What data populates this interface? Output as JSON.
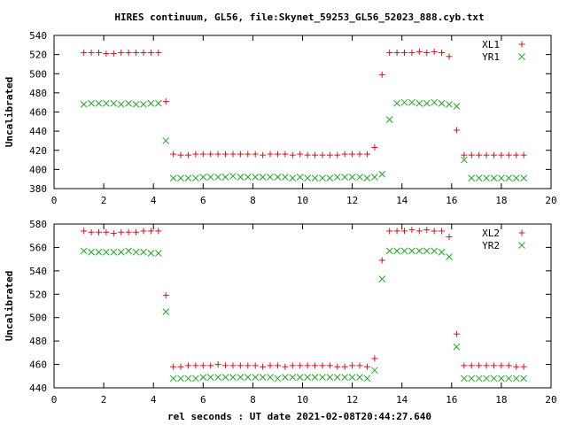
{
  "title": "HIRES continuum, GL56, file:Skynet_59253_GL56_52023_888.cyb.txt",
  "xlabel": "rel seconds : UT date 2021-02-08T20:44:27.640",
  "colors": {
    "plus": "#d4141c",
    "cross": "#22a824",
    "axis": "#000000"
  },
  "chart_data": [
    {
      "type": "scatter",
      "ylabel": "Uncalibrated",
      "xlim": [
        0,
        20
      ],
      "ylim": [
        380,
        540
      ],
      "xticks": [
        0,
        2,
        4,
        6,
        8,
        10,
        12,
        14,
        16,
        18,
        20
      ],
      "yticks": [
        380,
        400,
        420,
        440,
        460,
        480,
        500,
        520,
        540
      ],
      "legend_position": "top-right",
      "x": [
        1.2,
        1.5,
        1.8,
        2.1,
        2.4,
        2.7,
        3.0,
        3.3,
        3.6,
        3.9,
        4.2,
        4.5,
        4.8,
        5.1,
        5.4,
        5.7,
        6.0,
        6.3,
        6.6,
        6.9,
        7.2,
        7.5,
        7.8,
        8.1,
        8.4,
        8.7,
        9.0,
        9.3,
        9.6,
        9.9,
        10.2,
        10.5,
        10.8,
        11.1,
        11.4,
        11.7,
        12.0,
        12.3,
        12.6,
        12.9,
        13.2,
        13.5,
        13.8,
        14.1,
        14.4,
        14.7,
        15.0,
        15.3,
        15.6,
        15.9,
        16.2,
        16.5,
        16.8,
        17.1,
        17.4,
        17.7,
        18.0,
        18.3,
        18.6,
        18.9
      ],
      "series": [
        {
          "name": "XL1",
          "marker": "plus",
          "values": [
            522,
            522,
            522,
            521,
            521,
            522,
            522,
            522,
            522,
            522,
            522,
            471,
            416,
            415,
            415,
            416,
            416,
            416,
            416,
            416,
            416,
            416,
            416,
            416,
            415,
            416,
            416,
            416,
            415,
            416,
            415,
            415,
            415,
            415,
            415,
            416,
            416,
            416,
            416,
            423,
            499,
            522,
            522,
            522,
            522,
            523,
            522,
            523,
            522,
            518,
            441,
            415,
            415,
            415,
            415,
            415,
            415,
            415,
            415,
            415
          ]
        },
        {
          "name": "YR1",
          "marker": "cross",
          "values": [
            468,
            469,
            469,
            469,
            469,
            468,
            469,
            468,
            468,
            469,
            469,
            430,
            391,
            391,
            391,
            391,
            392,
            392,
            392,
            392,
            393,
            392,
            392,
            392,
            392,
            392,
            392,
            392,
            391,
            392,
            391,
            391,
            391,
            391,
            392,
            392,
            392,
            392,
            391,
            392,
            395,
            452,
            469,
            470,
            470,
            469,
            469,
            470,
            469,
            468,
            466,
            410,
            391,
            391,
            391,
            391,
            391,
            391,
            391,
            391
          ]
        }
      ]
    },
    {
      "type": "scatter",
      "ylabel": "Uncalibrated",
      "xlim": [
        0,
        20
      ],
      "ylim": [
        440,
        580
      ],
      "xticks": [
        0,
        2,
        4,
        6,
        8,
        10,
        12,
        14,
        16,
        18,
        20
      ],
      "yticks": [
        440,
        460,
        480,
        500,
        520,
        540,
        560,
        580
      ],
      "legend_position": "top-right",
      "x": [
        1.2,
        1.5,
        1.8,
        2.1,
        2.4,
        2.7,
        3.0,
        3.3,
        3.6,
        3.9,
        4.2,
        4.5,
        4.8,
        5.1,
        5.4,
        5.7,
        6.0,
        6.3,
        6.6,
        6.9,
        7.2,
        7.5,
        7.8,
        8.1,
        8.4,
        8.7,
        9.0,
        9.3,
        9.6,
        9.9,
        10.2,
        10.5,
        10.8,
        11.1,
        11.4,
        11.7,
        12.0,
        12.3,
        12.6,
        12.9,
        13.2,
        13.5,
        13.8,
        14.1,
        14.4,
        14.7,
        15.0,
        15.3,
        15.6,
        15.9,
        16.2,
        16.5,
        16.8,
        17.1,
        17.4,
        17.7,
        18.0,
        18.3,
        18.6,
        18.9
      ],
      "series": [
        {
          "name": "XL2",
          "marker": "plus",
          "values": [
            574,
            573,
            573,
            573,
            572,
            573,
            573,
            573,
            574,
            574,
            574,
            519,
            458,
            458,
            459,
            459,
            459,
            459,
            460,
            459,
            459,
            459,
            459,
            459,
            458,
            459,
            459,
            458,
            459,
            459,
            459,
            459,
            459,
            459,
            458,
            458,
            459,
            459,
            458,
            465,
            549,
            574,
            574,
            574,
            575,
            574,
            575,
            574,
            574,
            569,
            486,
            459,
            459,
            459,
            459,
            459,
            459,
            459,
            458,
            458
          ]
        },
        {
          "name": "YR2",
          "marker": "cross",
          "values": [
            557,
            556,
            556,
            556,
            556,
            556,
            557,
            556,
            556,
            555,
            555,
            505,
            448,
            448,
            448,
            448,
            449,
            449,
            449,
            449,
            449,
            449,
            449,
            449,
            449,
            449,
            448,
            449,
            449,
            449,
            449,
            449,
            449,
            449,
            449,
            449,
            449,
            449,
            448,
            455,
            533,
            557,
            557,
            557,
            557,
            557,
            557,
            557,
            556,
            552,
            475,
            448,
            448,
            448,
            448,
            448,
            448,
            448,
            448,
            448
          ]
        }
      ]
    }
  ]
}
